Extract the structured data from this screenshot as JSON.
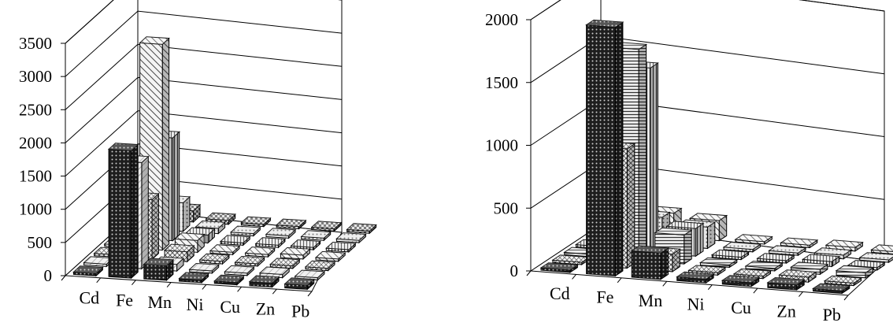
{
  "chart_data": [
    {
      "type": "bar",
      "title": "",
      "xlabel": "",
      "ylabel": "",
      "ylim": [
        0,
        3500
      ],
      "yticks": [
        "0",
        "500",
        "1000",
        "1500",
        "2000",
        "2500",
        "3000",
        "3500"
      ],
      "categories": [
        "Cd",
        "Fe",
        "Mn",
        "Ni",
        "Cu",
        "Zn",
        "Pb"
      ],
      "grid": true,
      "legend": "none",
      "series": [
        {
          "pattern": "dots-dark",
          "values": [
            10,
            1920,
            220,
            40,
            30,
            60,
            60
          ]
        },
        {
          "pattern": "diagonal-light",
          "values": [
            5,
            1600,
            100,
            30,
            20,
            50,
            30
          ]
        },
        {
          "pattern": "crosshatch",
          "values": [
            5,
            900,
            150,
            40,
            20,
            40,
            20
          ]
        },
        {
          "pattern": "diagonal",
          "values": [
            5,
            3100,
            180,
            30,
            20,
            60,
            20
          ]
        },
        {
          "pattern": "vertical-lines",
          "values": [
            5,
            1550,
            120,
            30,
            20,
            30,
            20
          ]
        },
        {
          "pattern": "dots-light",
          "values": [
            5,
            430,
            80,
            30,
            20,
            30,
            20
          ]
        },
        {
          "pattern": "checker",
          "values": [
            5,
            170,
            60,
            20,
            20,
            30,
            20
          ]
        }
      ]
    },
    {
      "type": "bar",
      "title": "",
      "xlabel": "",
      "ylabel": "",
      "ylim": [
        0,
        2000
      ],
      "yticks": [
        "0",
        "500",
        "1000",
        "1500",
        "2000"
      ],
      "categories": [
        "Cd",
        "Fe",
        "Mn",
        "Ni",
        "Cu",
        "Zn",
        "Pb"
      ],
      "grid": true,
      "legend": "none",
      "series": [
        {
          "pattern": "dots-dark",
          "values": [
            10,
            1980,
            210,
            30,
            30,
            40,
            20
          ]
        },
        {
          "pattern": "crosshatch",
          "values": [
            5,
            950,
            140,
            20,
            20,
            40,
            20
          ]
        },
        {
          "pattern": "horizontal-lines",
          "values": [
            5,
            1680,
            230,
            20,
            20,
            40,
            40
          ]
        },
        {
          "pattern": "vertical-lines",
          "values": [
            5,
            1470,
            220,
            20,
            20,
            40,
            20
          ]
        },
        {
          "pattern": "dots-light",
          "values": [
            5,
            220,
            170,
            20,
            20,
            30,
            20
          ]
        },
        {
          "pattern": "diagonal",
          "values": [
            5,
            190,
            160,
            20,
            20,
            30,
            20
          ]
        }
      ]
    }
  ]
}
